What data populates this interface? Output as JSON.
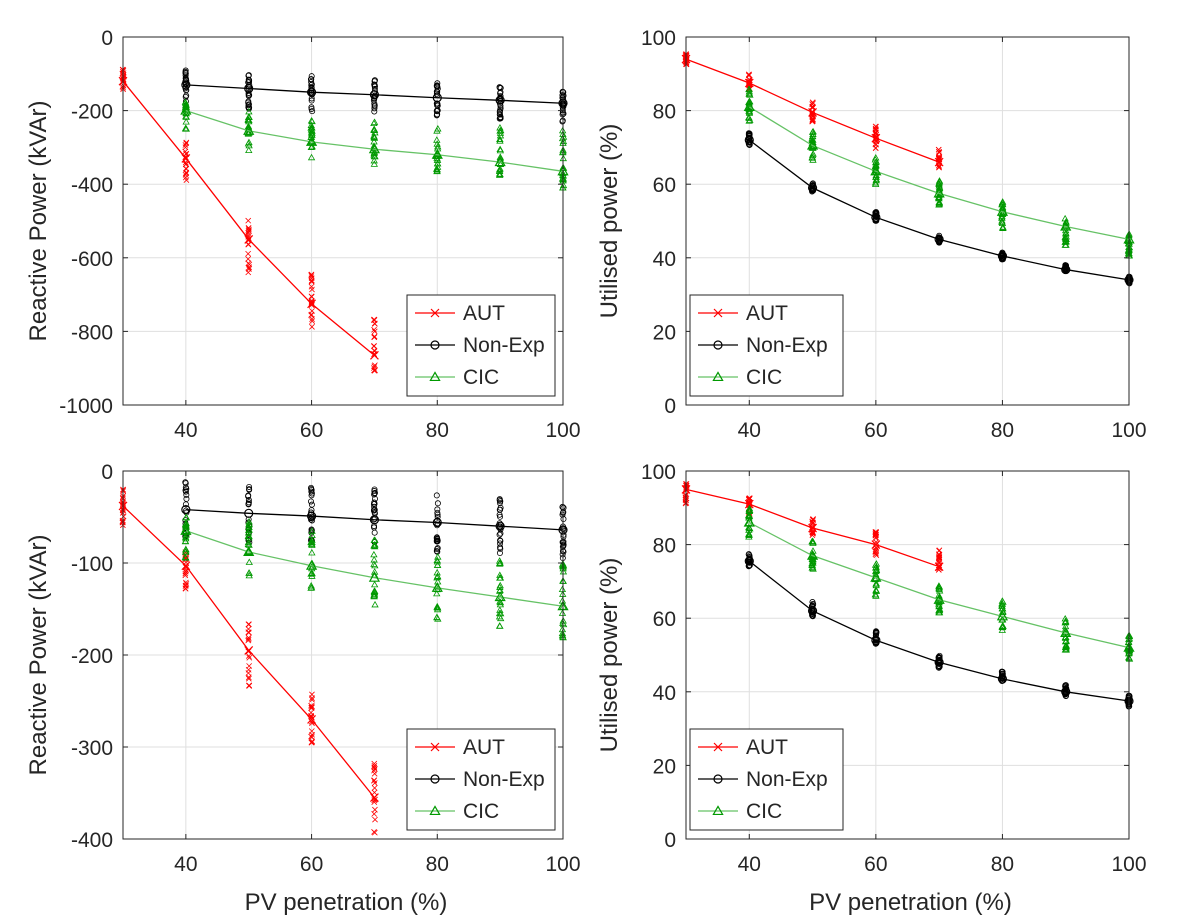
{
  "figure": {
    "colors": {
      "AUT": "#ff0000",
      "Non-Exp": "#000000",
      "CIC": "#009900",
      "CIC_line": "#66c266",
      "grid": "#dfdfdf",
      "axis": "#262626"
    }
  },
  "chart_data": [
    {
      "type": "line",
      "panel": "top-left",
      "title": "",
      "xlabel": "",
      "ylabel": "Reactive Power (kVAr)",
      "xlim": [
        30,
        100
      ],
      "ylim": [
        -1000,
        0
      ],
      "xticks": [
        40,
        60,
        80,
        100
      ],
      "xtick_labels": [
        "40",
        "60",
        "80",
        "100"
      ],
      "yticks": [
        -1000,
        -800,
        -600,
        -400,
        -200,
        0
      ],
      "ytick_labels": [
        "-1000",
        "-800",
        "-600",
        "-400",
        "-200",
        "0"
      ],
      "grid": true,
      "legend_position": "bottom-right",
      "series": [
        {
          "name": "AUT",
          "marker": "x",
          "x": [
            30,
            40,
            50,
            60,
            70
          ],
          "values": [
            -120,
            -330,
            -550,
            -725,
            -865
          ],
          "scatter_range": [
            [
              -150,
              -85
            ],
            [
              -395,
              -280
            ],
            [
              -640,
              -490
            ],
            [
              -810,
              -640
            ],
            [
              -910,
              -760
            ]
          ]
        },
        {
          "name": "Non-Exp",
          "marker": "o",
          "x": [
            40,
            50,
            60,
            70,
            80,
            90,
            100
          ],
          "values": [
            -130,
            -140,
            -150,
            -157,
            -165,
            -172,
            -180
          ],
          "scatter_range": [
            [
              -175,
              -90
            ],
            [
              -195,
              -100
            ],
            [
              -210,
              -105
            ],
            [
              -215,
              -115
            ],
            [
              -220,
              -125
            ],
            [
              -225,
              -135
            ],
            [
              -230,
              -140
            ]
          ]
        },
        {
          "name": "CIC",
          "marker": "triangle",
          "x": [
            40,
            50,
            60,
            70,
            80,
            90,
            100
          ],
          "values": [
            -200,
            -255,
            -285,
            -305,
            -320,
            -340,
            -365
          ],
          "scatter_range": [
            [
              -250,
              -175
            ],
            [
              -310,
              -200
            ],
            [
              -335,
              -220
            ],
            [
              -350,
              -230
            ],
            [
              -370,
              -240
            ],
            [
              -390,
              -240
            ],
            [
              -415,
              -250
            ]
          ]
        }
      ]
    },
    {
      "type": "line",
      "panel": "top-right",
      "title": "",
      "xlabel": "",
      "ylabel": "Utilised power (%)",
      "xlim": [
        30,
        100
      ],
      "ylim": [
        0,
        100
      ],
      "xticks": [
        40,
        60,
        80,
        100
      ],
      "xtick_labels": [
        "40",
        "60",
        "80",
        "100"
      ],
      "yticks": [
        0,
        20,
        40,
        60,
        80,
        100
      ],
      "ytick_labels": [
        "0",
        "20",
        "40",
        "60",
        "80",
        "100"
      ],
      "grid": true,
      "legend_position": "bottom-left",
      "series": [
        {
          "name": "AUT",
          "marker": "x",
          "x": [
            30,
            40,
            50,
            60,
            70
          ],
          "values": [
            94,
            87.5,
            79.5,
            72.5,
            66
          ],
          "scatter_range": [
            [
              92.5,
              95.5
            ],
            [
              85,
              90
            ],
            [
              77,
              82.5
            ],
            [
              69.5,
              76
            ],
            [
              64,
              69.5
            ]
          ]
        },
        {
          "name": "Non-Exp",
          "marker": "o",
          "x": [
            40,
            50,
            60,
            70,
            80,
            90,
            100
          ],
          "values": [
            72,
            59,
            51,
            45,
            40.5,
            36.8,
            34
          ],
          "scatter_range": [
            [
              70.5,
              74
            ],
            [
              58,
              60.5
            ],
            [
              50,
              52.5
            ],
            [
              44,
              46
            ],
            [
              39.5,
              41.5
            ],
            [
              36,
              38
            ],
            [
              33,
              35
            ]
          ]
        },
        {
          "name": "CIC",
          "marker": "triangle",
          "x": [
            40,
            50,
            60,
            70,
            80,
            90,
            100
          ],
          "values": [
            81,
            70.5,
            63.5,
            57.5,
            52.5,
            48.5,
            45
          ],
          "scatter_range": [
            [
              77,
              86
            ],
            [
              66,
              74.5
            ],
            [
              59.5,
              67.5
            ],
            [
              53,
              61
            ],
            [
              47.5,
              55.5
            ],
            [
              43,
              51
            ],
            [
              40.5,
              46.5
            ]
          ]
        }
      ]
    },
    {
      "type": "line",
      "panel": "bottom-left",
      "title": "",
      "xlabel": "PV penetration (%)",
      "ylabel": "Reactive Power (kVAr)",
      "xlim": [
        30,
        100
      ],
      "ylim": [
        -400,
        0
      ],
      "xticks": [
        40,
        60,
        80,
        100
      ],
      "xtick_labels": [
        "40",
        "60",
        "80",
        "100"
      ],
      "yticks": [
        -400,
        -300,
        -200,
        -100,
        0
      ],
      "ytick_labels": [
        "-400",
        "-300",
        "-200",
        "-100",
        "0"
      ],
      "grid": true,
      "legend_position": "bottom-right",
      "series": [
        {
          "name": "AUT",
          "marker": "x",
          "x": [
            30,
            40,
            50,
            60,
            70
          ],
          "values": [
            -38,
            -103,
            -195,
            -270,
            -355
          ],
          "scatter_range": [
            [
              -60,
              -20
            ],
            [
              -130,
              -85
            ],
            [
              -242,
              -162
            ],
            [
              -305,
              -242
            ],
            [
              -395,
              -312
            ]
          ]
        },
        {
          "name": "Non-Exp",
          "marker": "o",
          "x": [
            40,
            50,
            60,
            70,
            80,
            90,
            100
          ],
          "values": [
            -42,
            -46,
            -49,
            -53,
            -56,
            -60,
            -64
          ],
          "scatter_range": [
            [
              -75,
              -12
            ],
            [
              -78,
              -16
            ],
            [
              -78,
              -18
            ],
            [
              -82,
              -20
            ],
            [
              -88,
              -26
            ],
            [
              -92,
              -28
            ],
            [
              -96,
              -34
            ]
          ]
        },
        {
          "name": "CIC",
          "marker": "triangle",
          "x": [
            40,
            50,
            60,
            70,
            80,
            90,
            100
          ],
          "values": [
            -65,
            -88,
            -103,
            -116,
            -127,
            -137,
            -147
          ],
          "scatter_range": [
            [
              -95,
              -45
            ],
            [
              -115,
              -55
            ],
            [
              -128,
              -65
            ],
            [
              -148,
              -75
            ],
            [
              -162,
              -85
            ],
            [
              -170,
              -90
            ],
            [
              -182,
              -100
            ]
          ]
        }
      ]
    },
    {
      "type": "line",
      "panel": "bottom-right",
      "title": "",
      "xlabel": "PV penetration (%)",
      "ylabel": "Utilised power (%)",
      "xlim": [
        30,
        100
      ],
      "ylim": [
        0,
        100
      ],
      "xticks": [
        40,
        60,
        80,
        100
      ],
      "xtick_labels": [
        "40",
        "60",
        "80",
        "100"
      ],
      "yticks": [
        0,
        20,
        40,
        60,
        80,
        100
      ],
      "ytick_labels": [
        "0",
        "20",
        "40",
        "60",
        "80",
        "100"
      ],
      "grid": true,
      "legend_position": "bottom-left",
      "series": [
        {
          "name": "AUT",
          "marker": "x",
          "x": [
            30,
            40,
            50,
            60,
            70
          ],
          "values": [
            95,
            91,
            84.5,
            80,
            74
          ],
          "scatter_range": [
            [
              91,
              96.5
            ],
            [
              88,
              93
            ],
            [
              82,
              87
            ],
            [
              77,
              83.5
            ],
            [
              71,
              78.5
            ]
          ]
        },
        {
          "name": "Non-Exp",
          "marker": "o",
          "x": [
            40,
            50,
            60,
            70,
            80,
            90,
            100
          ],
          "values": [
            75.5,
            62,
            54,
            48,
            43.5,
            40,
            37.5
          ],
          "scatter_range": [
            [
              74,
              77.5
            ],
            [
              60.5,
              64.5
            ],
            [
              53,
              56.5
            ],
            [
              46.5,
              50
            ],
            [
              42.5,
              45.5
            ],
            [
              38.5,
              42
            ],
            [
              36,
              39
            ]
          ]
        },
        {
          "name": "CIC",
          "marker": "triangle",
          "x": [
            40,
            50,
            60,
            70,
            80,
            90,
            100
          ],
          "values": [
            86,
            77,
            71,
            65,
            60.5,
            56,
            52
          ],
          "scatter_range": [
            [
              81,
              90
            ],
            [
              72,
              81
            ],
            [
              66,
              75
            ],
            [
              60.5,
              69.5
            ],
            [
              56.5,
              65
            ],
            [
              51,
              60
            ],
            [
              48.5,
              56
            ]
          ]
        }
      ]
    }
  ]
}
